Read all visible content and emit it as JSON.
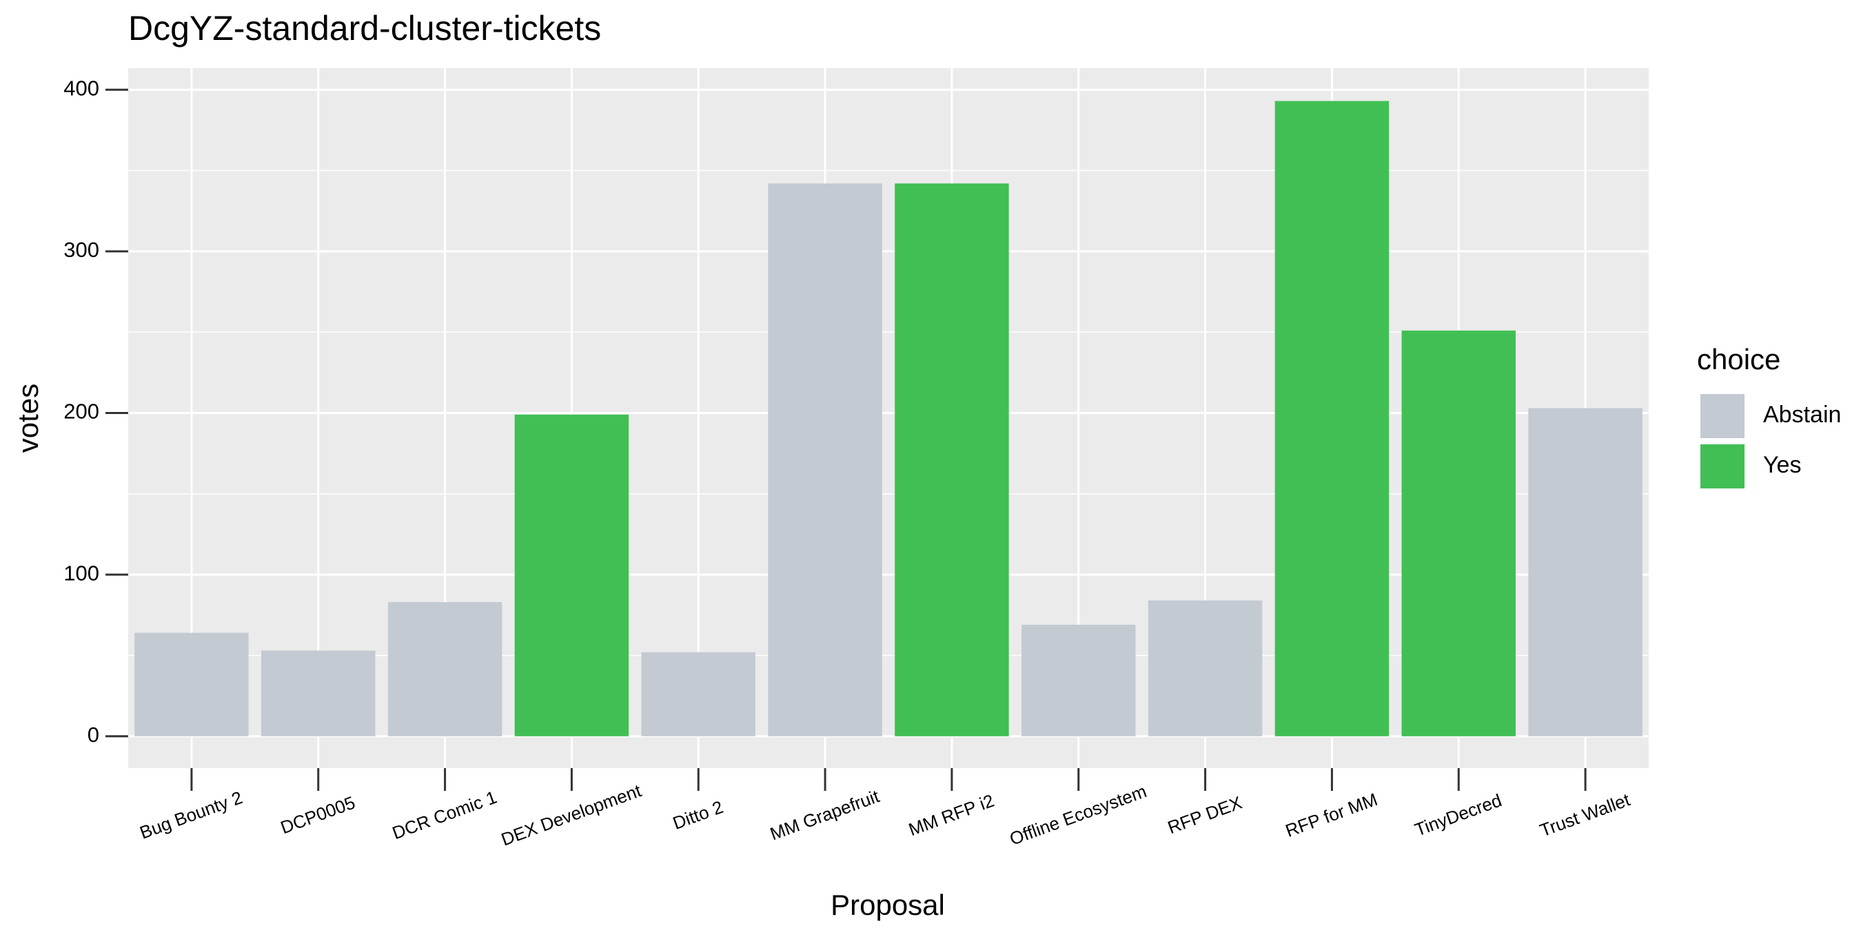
{
  "chart_data": {
    "type": "bar",
    "title": "DcgYZ-standard-cluster-tickets",
    "x_label": "Proposal",
    "y_label": "votes",
    "legend_title": "choice",
    "categories": [
      "Bug Bounty 2",
      "DCP0005",
      "DCR Comic 1",
      "DEX Development",
      "Ditto 2",
      "MM Grapefruit",
      "MM RFP i2",
      "Offline Ecosystem",
      "RFP DEX",
      "RFP for MM",
      "TinyDecred",
      "Trust Wallet"
    ],
    "series": [
      {
        "name": "Abstain",
        "color": "#c3cad2",
        "values": [
          64,
          53,
          83,
          null,
          52,
          342,
          null,
          69,
          84,
          null,
          null,
          203
        ]
      },
      {
        "name": "Yes",
        "color": "#41bf54",
        "values": [
          null,
          null,
          null,
          199,
          null,
          null,
          342,
          null,
          null,
          393,
          251,
          null
        ]
      }
    ],
    "ylim": [
      -19.7,
      413.3
    ],
    "yticks": [
      0,
      100,
      200,
      300,
      400
    ],
    "grid": true,
    "legend": "right"
  }
}
